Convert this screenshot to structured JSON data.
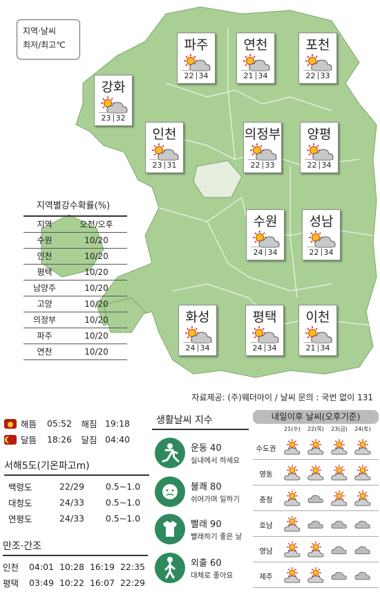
{
  "legend": {
    "line1": "지역·날씨",
    "line2": "최저/최고℃"
  },
  "cities": [
    {
      "name": "파주",
      "low": "22",
      "high": "34",
      "weather": "sun-cloud-icon"
    },
    {
      "name": "연천",
      "low": "21",
      "high": "34",
      "weather": "sun-cloud-icon"
    },
    {
      "name": "포천",
      "low": "22",
      "high": "33",
      "weather": "sun-cloud-icon"
    },
    {
      "name": "강화",
      "low": "23",
      "high": "32",
      "weather": "sun-cloud-icon"
    },
    {
      "name": "인천",
      "low": "23",
      "high": "31",
      "weather": "sun-cloud-icon"
    },
    {
      "name": "의정부",
      "low": "22",
      "high": "33",
      "weather": "sun-cloud-icon"
    },
    {
      "name": "양평",
      "low": "22",
      "high": "34",
      "weather": "sun-cloud-icon"
    },
    {
      "name": "수원",
      "low": "24",
      "high": "34",
      "weather": "sun-cloud-icon"
    },
    {
      "name": "성남",
      "low": "22",
      "high": "34",
      "weather": "sun-cloud-icon"
    },
    {
      "name": "화성",
      "low": "24",
      "high": "34",
      "weather": "sun-cloud-icon"
    },
    {
      "name": "평택",
      "low": "24",
      "high": "34",
      "weather": "sun-cloud-icon"
    },
    {
      "name": "이천",
      "low": "21",
      "high": "34",
      "weather": "sun-cloud-icon"
    }
  ],
  "rain": {
    "title": "지역별강수확률(%)",
    "headers": [
      "지역",
      "오전/오후"
    ],
    "rows": [
      [
        "수원",
        "10/20"
      ],
      [
        "인천",
        "10/20"
      ],
      [
        "평택",
        "10/20"
      ],
      [
        "남양주",
        "10/20"
      ],
      [
        "고양",
        "10/20"
      ],
      [
        "의정부",
        "10/20"
      ],
      [
        "파주",
        "10/20"
      ],
      [
        "연천",
        "10/20"
      ]
    ]
  },
  "source": "자료제공: (주)웨더아이 / 날씨 문의 : 국번 없이 131",
  "sunmoon": [
    {
      "a": "해뜸",
      "t1": "05:52",
      "b": "해짐",
      "t2": "19:18"
    },
    {
      "a": "달뜸",
      "t1": "18:26",
      "b": "달짐",
      "t2": "04:40"
    }
  ],
  "sea": {
    "title": "서해5도(기온파고m)",
    "rows": [
      [
        "백령도",
        "22/29",
        "0.5∼1.0"
      ],
      [
        "대청도",
        "24/33",
        "0.5∼1.0"
      ],
      [
        "연평도",
        "24/33",
        "0.5∼1.0"
      ]
    ]
  },
  "tide": {
    "title": "만조·간조",
    "rows": [
      [
        "인천",
        "04:01",
        "10:28",
        "16:19",
        "22:35"
      ],
      [
        "평택",
        "03:49",
        "10:22",
        "16:07",
        "22:29"
      ]
    ]
  },
  "life": {
    "title": "생활날씨 지수",
    "items": [
      {
        "name": "운동 40",
        "desc": "실내에서 하세요",
        "icon": "running-icon"
      },
      {
        "name": "불쾌 80",
        "desc": "쉬어가며 일하기",
        "icon": "sweating-face-icon"
      },
      {
        "name": "빨래 90",
        "desc": "빨래하기 좋은 날",
        "icon": "shirt-icon"
      },
      {
        "name": "외출 60",
        "desc": "대체로 좋아요",
        "icon": "walking-icon"
      }
    ]
  },
  "tomorrow": {
    "title": "내일이후 날씨(오후기준)",
    "days": [
      "21(수)",
      "22(목)",
      "23(금)",
      "24(토)"
    ],
    "regions": [
      {
        "name": "수도권",
        "w": [
          "sun-cloud",
          "sun-cloud",
          "sun-cloud",
          "sun-cloud"
        ]
      },
      {
        "name": "영동",
        "w": [
          "sun-cloud",
          "sun-cloud",
          "sun-cloud",
          "sun-cloud"
        ]
      },
      {
        "name": "충청",
        "w": [
          "sun-cloud",
          "cloud",
          "sun-cloud",
          "sun-cloud"
        ]
      },
      {
        "name": "호남",
        "w": [
          "sun-cloud",
          "cloud",
          "cloud",
          "cloud"
        ]
      },
      {
        "name": "영남",
        "w": [
          "sun-cloud",
          "sun-cloud",
          "cloud",
          "cloud"
        ]
      },
      {
        "name": "제주",
        "w": [
          "sun-cloud",
          "sun-cloud",
          "cloud",
          "cloud"
        ]
      }
    ]
  },
  "colors": {
    "land": "#a9cf95",
    "sea": "#ffffff",
    "panel": "#2e8a5e",
    "accent": "#b51d10"
  }
}
